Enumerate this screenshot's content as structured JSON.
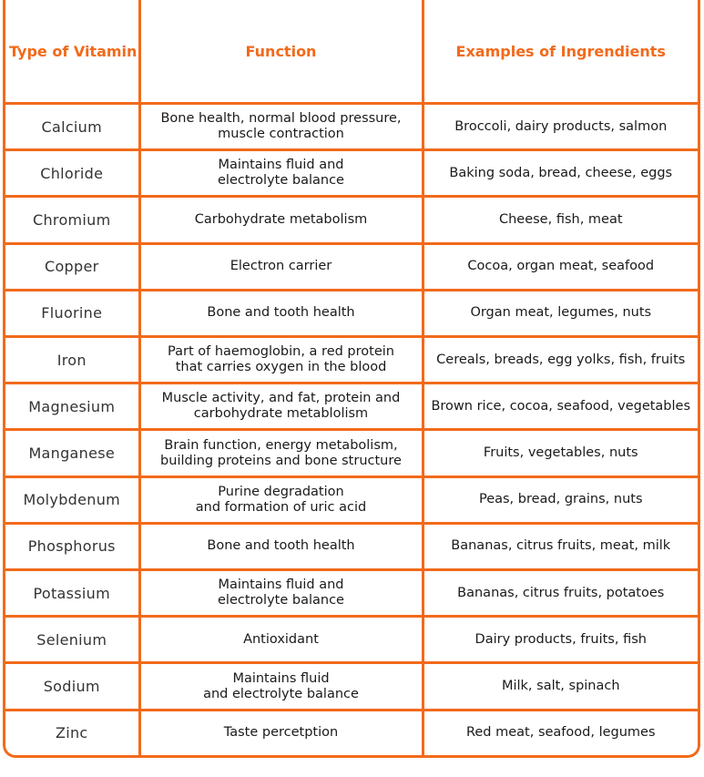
{
  "table": {
    "headers": [
      "Type of Vitamin",
      "Function",
      "Examples of Ingrendients"
    ],
    "rows": [
      {
        "vitamin": "Calcium",
        "function": [
          "Bone health, normal blood pressure,",
          "muscle contraction"
        ],
        "examples": "Broccoli, dairy products, salmon"
      },
      {
        "vitamin": "Chloride",
        "function": [
          "Maintains fluid and",
          "electrolyte balance"
        ],
        "examples": "Baking soda, bread, cheese, eggs"
      },
      {
        "vitamin": "Chromium",
        "function": [
          "Carbohydrate metabolism"
        ],
        "examples": "Cheese, fish, meat"
      },
      {
        "vitamin": "Copper",
        "function": [
          "Electron carrier"
        ],
        "examples": "Cocoa, organ meat, seafood"
      },
      {
        "vitamin": "Fluorine",
        "function": [
          "Bone and tooth health"
        ],
        "examples": "Organ meat, legumes, nuts"
      },
      {
        "vitamin": "Iron",
        "function": [
          "Part of haemoglobin, a red protein",
          "that carries oxygen in the blood"
        ],
        "examples": "Cereals, breads, egg yolks, fish, fruits"
      },
      {
        "vitamin": "Magnesium",
        "function": [
          "Muscle activity, and fat, protein and",
          "carbohydrate metablolism"
        ],
        "examples": "Brown rice, cocoa, seafood, vegetables"
      },
      {
        "vitamin": "Manganese",
        "function": [
          "Brain function, energy metabolism,",
          "building proteins and bone structure"
        ],
        "examples": "Fruits, vegetables, nuts"
      },
      {
        "vitamin": "Molybdenum",
        "function": [
          "Purine degradation",
          "and formation of uric acid"
        ],
        "examples": "Peas, bread, grains, nuts"
      },
      {
        "vitamin": "Phosphorus",
        "function": [
          "Bone and tooth health"
        ],
        "examples": "Bananas, citrus fruits, meat, milk"
      },
      {
        "vitamin": "Potassium",
        "function": [
          "Maintains fluid and",
          "electrolyte balance"
        ],
        "examples": "Bananas, citrus fruits, potatoes"
      },
      {
        "vitamin": "Selenium",
        "function": [
          "Antioxidant"
        ],
        "examples": "Dairy products, fruits, fish"
      },
      {
        "vitamin": "Sodium",
        "function": [
          "Maintains fluid",
          "and electrolyte balance"
        ],
        "examples": "Milk, salt, spinach"
      },
      {
        "vitamin": "Zinc",
        "function": [
          "Taste percetption"
        ],
        "examples": "Red meat, seafood, legumes"
      }
    ]
  },
  "colors": {
    "accent": "#f26a1b",
    "text": "#1a1a1a"
  }
}
